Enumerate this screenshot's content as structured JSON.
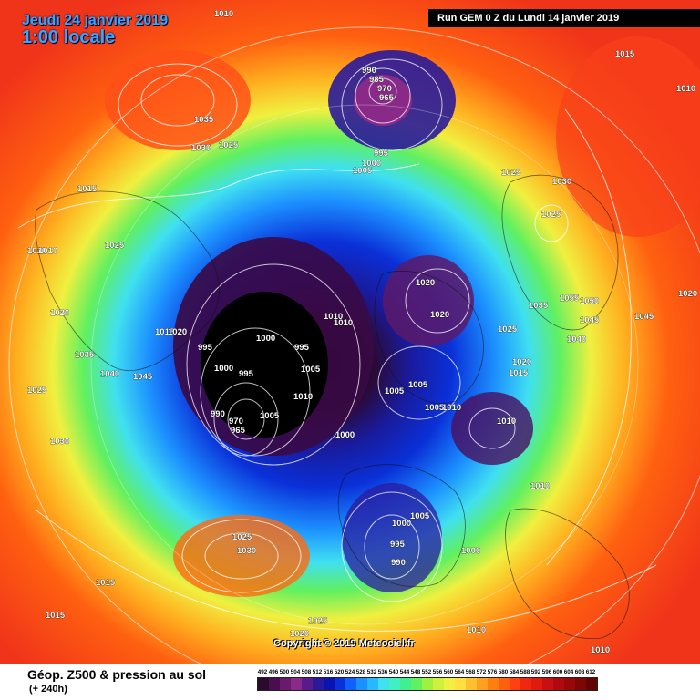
{
  "header": {
    "date_line": "Jeudi 24 janvier 2019",
    "time_line": "1:00 locale",
    "run_info": "Run GEM 0 Z du Lundi 14 janvier 2019"
  },
  "footer": {
    "title": "Géop. Z500 & pression au sol",
    "subtitle": "(+ 240h)",
    "copyright": "Copyright © 2019 Meteociel.fr"
  },
  "scale": {
    "ticks": [
      "492",
      "496",
      "500",
      "504",
      "508",
      "512",
      "516",
      "520",
      "524",
      "528",
      "532",
      "536",
      "540",
      "544",
      "548",
      "552",
      "556",
      "560",
      "564",
      "568",
      "572",
      "576",
      "580",
      "584",
      "588",
      "592",
      "596",
      "600",
      "604",
      "608",
      "612"
    ],
    "colors": [
      "#2a0a2e",
      "#4a0e4e",
      "#6a1a6a",
      "#8a2a88",
      "#5a1a8a",
      "#2a1a9a",
      "#0a14b0",
      "#0a30d8",
      "#1060ff",
      "#1c90ff",
      "#28b8ff",
      "#40e0f0",
      "#40f0c0",
      "#40f090",
      "#60f060",
      "#a0f040",
      "#d0f040",
      "#f0f040",
      "#ffe040",
      "#ffc030",
      "#ffa020",
      "#ff8010",
      "#ff6010",
      "#ff4010",
      "#f02810",
      "#e01a10",
      "#c81010",
      "#b00a10",
      "#980808",
      "#800606",
      "#600404"
    ]
  },
  "pressure_labels": [
    "1010",
    "1015",
    "1015",
    "1010",
    "1035",
    "1030",
    "1025",
    "990",
    "985",
    "970",
    "965",
    "995",
    "1000",
    "1005",
    "1025",
    "1030",
    "1025",
    "1015",
    "1010",
    "1010",
    "1025",
    "1020",
    "1020",
    "1020",
    "1010",
    "1000",
    "995",
    "1005",
    "1000",
    "995",
    "1010",
    "1015",
    "1035",
    "1055",
    "1050",
    "1045",
    "1045",
    "1020",
    "1025",
    "1040",
    "1020",
    "1015",
    "1020",
    "1035",
    "1040",
    "1045",
    "1025",
    "1030",
    "995",
    "990",
    "970",
    "965",
    "1005",
    "1000",
    "1010",
    "1005",
    "1005",
    "1010",
    "1005",
    "1010",
    "1010",
    "1000",
    "1005",
    "995",
    "990",
    "1000",
    "1025",
    "1030",
    "1015",
    "1015",
    "1025",
    "1020",
    "1010",
    "1010"
  ]
}
